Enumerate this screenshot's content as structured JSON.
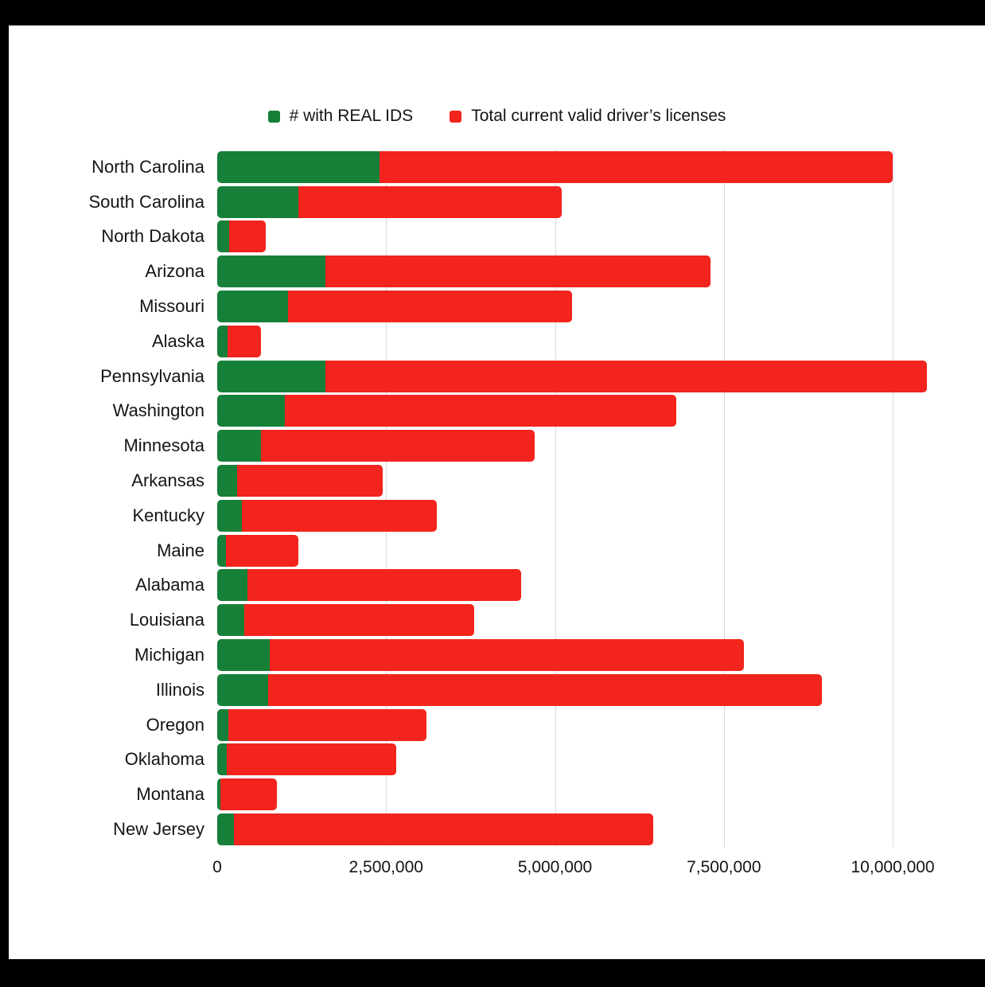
{
  "chart_data": {
    "type": "bar",
    "orientation": "horizontal",
    "stacked_to_total": true,
    "title": "",
    "xlabel": "",
    "ylabel": "",
    "xlim": [
      0,
      10800000
    ],
    "grid": "vertical",
    "legend_position": "top",
    "categories": [
      "North Carolina",
      "South Carolina",
      "North Dakota",
      "Arizona",
      "Missouri",
      "Alaska",
      "Pennsylvania",
      "Washington",
      "Minnesota",
      "Arkansas",
      "Kentucky",
      "Maine",
      "Alabama",
      "Louisiana",
      "Michigan",
      "Illinois",
      "Oregon",
      "Oklahoma",
      "Montana",
      "New Jersey"
    ],
    "series": [
      {
        "name": "# with REAL IDS",
        "color": "#168039",
        "values": [
          2400000,
          1200000,
          180000,
          1600000,
          1050000,
          150000,
          1600000,
          1000000,
          650000,
          300000,
          360000,
          130000,
          450000,
          400000,
          780000,
          750000,
          160000,
          140000,
          50000,
          250000
        ]
      },
      {
        "name": "Total current valid driver’s licenses",
        "color": "#f2241d",
        "values": [
          10000000,
          5100000,
          720000,
          7300000,
          5250000,
          650000,
          10500000,
          6800000,
          4700000,
          2450000,
          3250000,
          1200000,
          4500000,
          3800000,
          7800000,
          8950000,
          3100000,
          2650000,
          880000,
          6450000
        ]
      }
    ],
    "x_ticks": [
      0,
      2500000,
      5000000,
      7500000,
      10000000
    ],
    "x_tick_labels": [
      "0",
      "2,500,000",
      "5,000,000",
      "7,500,000",
      "10,000,000"
    ]
  },
  "colors": {
    "background_frame": "#000000",
    "plot_background": "#ffffff",
    "gridline": "#d9d9d9",
    "text": "#141414"
  }
}
